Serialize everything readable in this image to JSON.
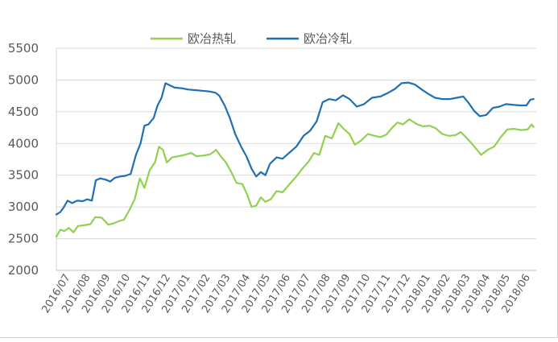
{
  "chart_data": {
    "type": "line",
    "title": "",
    "xlabel": "",
    "ylabel": "",
    "ylim": [
      2000,
      5500
    ],
    "yticks": [
      2000,
      2500,
      3000,
      3500,
      4000,
      4500,
      5000,
      5500
    ],
    "ytick_labels": [
      "2000",
      "2500",
      "3000",
      "3500",
      "4000",
      "4500",
      "5000",
      "5500"
    ],
    "x_tick_labels": [
      "2016/07",
      "2016/08",
      "2016/09",
      "2016/10",
      "2016/11",
      "2016/12",
      "2017/01",
      "2017/02",
      "2017/03",
      "2017/04",
      "2017/05",
      "2017/06",
      "2017/07",
      "2017/08",
      "2017/09",
      "2017/10",
      "2017/11",
      "2017/12",
      "2018/01",
      "2018/02",
      "2018/03",
      "2018/04",
      "2018/05",
      "2018/06"
    ],
    "grid": "horizontal",
    "legend_position": "top",
    "series": [
      {
        "name": "欧冶热轧",
        "color": "#92D050",
        "points": [
          [
            "2016-07-01",
            2530
          ],
          [
            "2016-07-07",
            2640
          ],
          [
            "2016-07-13",
            2620
          ],
          [
            "2016-07-20",
            2670
          ],
          [
            "2016-07-27",
            2600
          ],
          [
            "2016-08-03",
            2700
          ],
          [
            "2016-08-12",
            2710
          ],
          [
            "2016-08-22",
            2730
          ],
          [
            "2016-08-29",
            2840
          ],
          [
            "2016-09-08",
            2830
          ],
          [
            "2016-09-18",
            2720
          ],
          [
            "2016-09-26",
            2740
          ],
          [
            "2016-10-05",
            2780
          ],
          [
            "2016-10-12",
            2800
          ],
          [
            "2016-10-20",
            2950
          ],
          [
            "2016-10-28",
            3120
          ],
          [
            "2016-11-05",
            3450
          ],
          [
            "2016-11-12",
            3300
          ],
          [
            "2016-11-20",
            3580
          ],
          [
            "2016-11-28",
            3700
          ],
          [
            "2016-12-04",
            3950
          ],
          [
            "2016-12-10",
            3900
          ],
          [
            "2016-12-16",
            3700
          ],
          [
            "2016-12-24",
            3780
          ],
          [
            "2017-01-03",
            3800
          ],
          [
            "2017-01-12",
            3820
          ],
          [
            "2017-01-22",
            3850
          ],
          [
            "2017-01-30",
            3800
          ],
          [
            "2017-02-10",
            3810
          ],
          [
            "2017-02-20",
            3830
          ],
          [
            "2017-03-01",
            3900
          ],
          [
            "2017-03-08",
            3800
          ],
          [
            "2017-03-16",
            3700
          ],
          [
            "2017-03-24",
            3550
          ],
          [
            "2017-04-01",
            3380
          ],
          [
            "2017-04-10",
            3360
          ],
          [
            "2017-04-17",
            3200
          ],
          [
            "2017-04-24",
            3000
          ],
          [
            "2017-05-01",
            3020
          ],
          [
            "2017-05-08",
            3150
          ],
          [
            "2017-05-15",
            3080
          ],
          [
            "2017-05-23",
            3120
          ],
          [
            "2017-06-01",
            3250
          ],
          [
            "2017-06-10",
            3230
          ],
          [
            "2017-06-20",
            3350
          ],
          [
            "2017-07-01",
            3480
          ],
          [
            "2017-07-10",
            3600
          ],
          [
            "2017-07-20",
            3720
          ],
          [
            "2017-07-28",
            3850
          ],
          [
            "2017-08-05",
            3820
          ],
          [
            "2017-08-14",
            4120
          ],
          [
            "2017-08-24",
            4080
          ],
          [
            "2017-09-03",
            4320
          ],
          [
            "2017-09-12",
            4220
          ],
          [
            "2017-09-20",
            4150
          ],
          [
            "2017-09-28",
            3980
          ],
          [
            "2017-10-08",
            4050
          ],
          [
            "2017-10-18",
            4150
          ],
          [
            "2017-10-28",
            4120
          ],
          [
            "2017-11-06",
            4100
          ],
          [
            "2017-11-15",
            4140
          ],
          [
            "2017-11-24",
            4250
          ],
          [
            "2017-12-02",
            4330
          ],
          [
            "2017-12-10",
            4300
          ],
          [
            "2017-12-20",
            4380
          ],
          [
            "2018-01-01",
            4300
          ],
          [
            "2018-01-10",
            4270
          ],
          [
            "2018-01-20",
            4280
          ],
          [
            "2018-01-29",
            4240
          ],
          [
            "2018-02-08",
            4150
          ],
          [
            "2018-02-18",
            4120
          ],
          [
            "2018-02-28",
            4130
          ],
          [
            "2018-03-08",
            4180
          ],
          [
            "2018-03-16",
            4100
          ],
          [
            "2018-03-23",
            4020
          ],
          [
            "2018-04-02",
            3900
          ],
          [
            "2018-04-08",
            3820
          ],
          [
            "2018-04-18",
            3900
          ],
          [
            "2018-04-28",
            3950
          ],
          [
            "2018-05-08",
            4100
          ],
          [
            "2018-05-18",
            4220
          ],
          [
            "2018-05-28",
            4230
          ],
          [
            "2018-06-08",
            4210
          ],
          [
            "2018-06-18",
            4220
          ],
          [
            "2018-06-24",
            4300
          ],
          [
            "2018-06-27",
            4260
          ]
        ]
      },
      {
        "name": "欧冶冷轧",
        "color": "#1F6FB4",
        "points": [
          [
            "2016-07-01",
            2880
          ],
          [
            "2016-07-07",
            2920
          ],
          [
            "2016-07-12",
            2990
          ],
          [
            "2016-07-18",
            3100
          ],
          [
            "2016-07-25",
            3060
          ],
          [
            "2016-08-02",
            3100
          ],
          [
            "2016-08-10",
            3090
          ],
          [
            "2016-08-17",
            3120
          ],
          [
            "2016-08-24",
            3100
          ],
          [
            "2016-08-30",
            3420
          ],
          [
            "2016-09-06",
            3450
          ],
          [
            "2016-09-14",
            3430
          ],
          [
            "2016-09-21",
            3400
          ],
          [
            "2016-09-28",
            3460
          ],
          [
            "2016-10-06",
            3480
          ],
          [
            "2016-10-14",
            3490
          ],
          [
            "2016-10-22",
            3520
          ],
          [
            "2016-10-30",
            3820
          ],
          [
            "2016-11-06",
            4000
          ],
          [
            "2016-11-12",
            4280
          ],
          [
            "2016-11-18",
            4300
          ],
          [
            "2016-11-26",
            4400
          ],
          [
            "2016-12-02",
            4600
          ],
          [
            "2016-12-08",
            4720
          ],
          [
            "2016-12-14",
            4950
          ],
          [
            "2016-12-20",
            4920
          ],
          [
            "2016-12-28",
            4880
          ],
          [
            "2017-01-08",
            4870
          ],
          [
            "2017-01-18",
            4850
          ],
          [
            "2017-01-28",
            4840
          ],
          [
            "2017-02-08",
            4830
          ],
          [
            "2017-02-18",
            4820
          ],
          [
            "2017-02-28",
            4800
          ],
          [
            "2017-03-06",
            4750
          ],
          [
            "2017-03-14",
            4600
          ],
          [
            "2017-03-22",
            4400
          ],
          [
            "2017-03-30",
            4150
          ],
          [
            "2017-04-08",
            3950
          ],
          [
            "2017-04-16",
            3800
          ],
          [
            "2017-04-24",
            3600
          ],
          [
            "2017-05-01",
            3480
          ],
          [
            "2017-05-08",
            3550
          ],
          [
            "2017-05-15",
            3500
          ],
          [
            "2017-05-22",
            3680
          ],
          [
            "2017-06-01",
            3780
          ],
          [
            "2017-06-10",
            3760
          ],
          [
            "2017-06-20",
            3850
          ],
          [
            "2017-07-01",
            3950
          ],
          [
            "2017-07-12",
            4120
          ],
          [
            "2017-07-22",
            4200
          ],
          [
            "2017-08-01",
            4350
          ],
          [
            "2017-08-10",
            4650
          ],
          [
            "2017-08-20",
            4700
          ],
          [
            "2017-08-30",
            4680
          ],
          [
            "2017-09-10",
            4760
          ],
          [
            "2017-09-20",
            4700
          ],
          [
            "2017-10-01",
            4580
          ],
          [
            "2017-10-12",
            4620
          ],
          [
            "2017-10-24",
            4720
          ],
          [
            "2017-11-06",
            4740
          ],
          [
            "2017-11-18",
            4800
          ],
          [
            "2017-11-28",
            4860
          ],
          [
            "2017-12-08",
            4950
          ],
          [
            "2017-12-18",
            4960
          ],
          [
            "2017-12-28",
            4930
          ],
          [
            "2018-01-08",
            4850
          ],
          [
            "2018-01-18",
            4780
          ],
          [
            "2018-01-28",
            4720
          ],
          [
            "2018-02-08",
            4700
          ],
          [
            "2018-02-20",
            4700
          ],
          [
            "2018-03-02",
            4720
          ],
          [
            "2018-03-12",
            4740
          ],
          [
            "2018-03-20",
            4640
          ],
          [
            "2018-03-28",
            4520
          ],
          [
            "2018-04-06",
            4430
          ],
          [
            "2018-04-16",
            4450
          ],
          [
            "2018-04-26",
            4560
          ],
          [
            "2018-05-06",
            4580
          ],
          [
            "2018-05-16",
            4620
          ],
          [
            "2018-05-26",
            4610
          ],
          [
            "2018-06-06",
            4600
          ],
          [
            "2018-06-16",
            4600
          ],
          [
            "2018-06-22",
            4690
          ],
          [
            "2018-06-27",
            4700
          ]
        ]
      }
    ]
  }
}
